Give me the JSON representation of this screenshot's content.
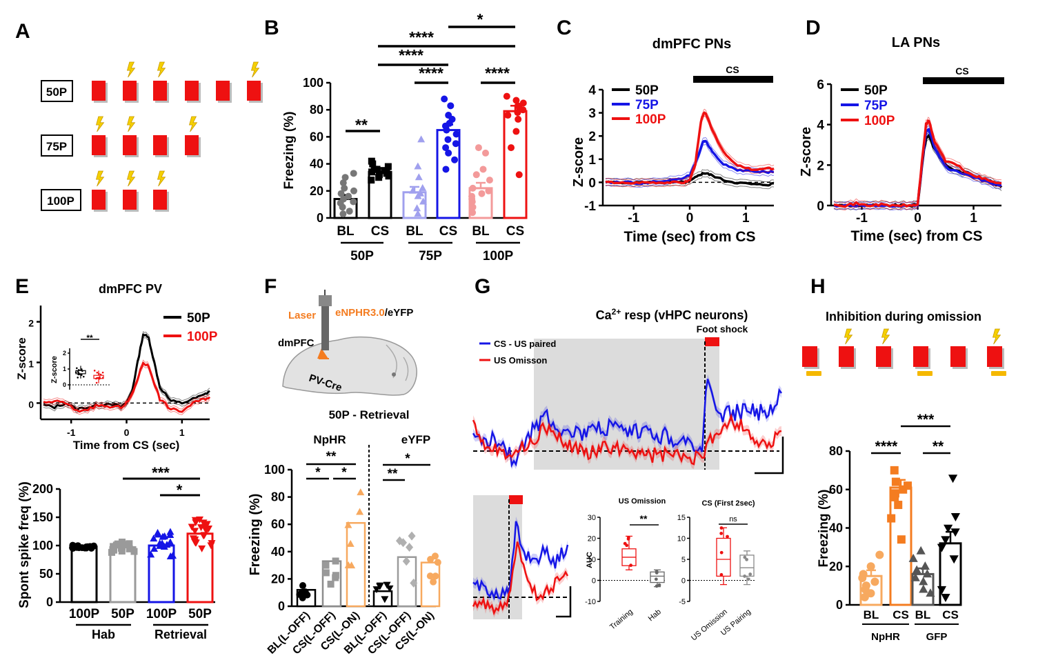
{
  "colors": {
    "p50": "#000000",
    "p75": "#1515e6",
    "p100": "#ee1111",
    "light50": "#7a7a7a",
    "light75": "#a0a0ee",
    "light100": "#f39a9a",
    "gray": "#9a9a9a",
    "orange": "#f47c20",
    "lightOrange": "#f7a95f",
    "shock": "#f5d000",
    "optoBar": "#f5b800",
    "block": "#ee1111"
  },
  "panels": {
    "A": "A",
    "B": "B",
    "C": "C",
    "D": "D",
    "E": "E",
    "F": "F",
    "G": "G",
    "H": "H"
  },
  "A": {
    "rows": [
      {
        "label": "50P",
        "shocks": [
          1,
          2,
          5
        ]
      },
      {
        "label": "75P",
        "shocks": [
          0,
          1,
          3
        ]
      },
      {
        "label": "100P",
        "shocks": [
          0,
          1,
          2
        ]
      }
    ],
    "icon": "lightning-icon"
  },
  "B": {
    "ylabel": "Freezing (%)",
    "yticks": [
      "0",
      "20",
      "40",
      "60",
      "80",
      "100"
    ],
    "tick_labels": [
      "BL",
      "CS",
      "BL",
      "CS",
      "BL",
      "CS"
    ],
    "groups": [
      "50P",
      "75P",
      "100P"
    ],
    "sig": {
      "s1": "**",
      "s2": "****",
      "s3": "****",
      "s4": "****",
      "s5": "****",
      "s6": "*"
    }
  },
  "C": {
    "title": "dmPFC PNs",
    "xlabel": "Time (sec) from CS",
    "ylabel": "Z-score",
    "cs": "CS",
    "yticks": [
      "-1",
      "0",
      "1",
      "2",
      "3",
      "4"
    ],
    "xticks": [
      "-1",
      "0",
      "1"
    ],
    "legend": [
      "50P",
      "75P",
      "100P"
    ]
  },
  "D": {
    "title": "LA PNs",
    "xlabel": "Time (sec) from CS",
    "ylabel": "Z-score",
    "cs": "CS",
    "yticks": [
      "0",
      "2",
      "4",
      "6"
    ],
    "xticks": [
      "-1",
      "0",
      "1"
    ],
    "legend": [
      "50P",
      "75P",
      "100P"
    ]
  },
  "E": {
    "title": "dmPFC PV",
    "xlabel": "Time from CS (sec)",
    "ylabel": "Z-score",
    "yticks": [
      "0",
      "1",
      "2"
    ],
    "xticks": [
      "-1",
      "0",
      "1"
    ],
    "legend": [
      "50P",
      "100P"
    ],
    "inset": {
      "ylabel": "Z-score",
      "yticks": [
        "0",
        "1",
        "2"
      ],
      "sig": "**"
    },
    "bar": {
      "ylabel": "Spont spike freq (%)",
      "yticks": [
        "0",
        "50",
        "100",
        "150",
        "200"
      ],
      "tick_labels": [
        "100P",
        "50P",
        "100P",
        "50P"
      ],
      "groups": [
        "Hab",
        "Retrieval"
      ],
      "sig1": "***",
      "sig2": "*"
    }
  },
  "F": {
    "laser": "Laser",
    "virus_a": "eNPHR3.0",
    "virus_b": "/eYFP",
    "region": "dmPFC",
    "mouse": "PV-Cre",
    "subtitle": "50P - Retrieval",
    "group1": "NpHR",
    "group2": "eYFP",
    "ylabel": "Freezing (%)",
    "yticks": [
      "0",
      "20",
      "40",
      "60",
      "80",
      "100"
    ],
    "tick_labels": [
      "BL(L-OFF)",
      "CS(L-OFF)",
      "CS(L-ON)",
      "BL(L-OFF)",
      "CS(L-OFF)",
      "CS(L-ON)"
    ],
    "sig": {
      "a": "**",
      "b": "*",
      "c": "*",
      "d": "*",
      "e": "**"
    }
  },
  "G": {
    "title_pre": "Ca",
    "title_sup": "2+",
    "title_post": " resp (vHPC neurons)",
    "foot_shock": "Foot shock",
    "legend": [
      "CS - US paired",
      "US Omisson"
    ],
    "box1": {
      "title": "US Omission",
      "ylabel": "AUC",
      "yticks": [
        "-10",
        "0",
        "10",
        "20",
        "30"
      ],
      "xlabels": [
        "Training",
        "Hab"
      ],
      "sig": "**"
    },
    "box2": {
      "title": "CS (First 2sec)",
      "yticks": [
        "-5",
        "0",
        "5",
        "10",
        "15"
      ],
      "xlabels": [
        "US Omission",
        "US Pairing"
      ],
      "sig": "ns"
    }
  },
  "H": {
    "title": "Inhibition  during omission",
    "ylabel": "Freezing (%)",
    "yticks": [
      "0",
      "20",
      "40",
      "60",
      "80"
    ],
    "tick_labels": [
      "BL",
      "CS",
      "BL",
      "CS"
    ],
    "groups": [
      "NpHR",
      "GFP"
    ],
    "sig1": "****",
    "sig2": "**",
    "sig3": "***"
  },
  "chart_data": [
    {
      "panel": "B",
      "type": "bar",
      "ylabel": "Freezing (%)",
      "ylim": [
        0,
        100
      ],
      "categories": [
        "50P BL",
        "50P CS",
        "75P BL",
        "75P CS",
        "100P BL",
        "100P CS"
      ],
      "values": [
        14,
        34,
        19,
        65,
        22,
        79
      ],
      "errors": [
        3,
        3,
        4,
        4,
        4,
        4
      ],
      "points": [
        [
          8,
          11,
          12,
          14,
          16,
          18,
          20,
          22,
          26,
          30,
          33,
          5,
          3
        ],
        [
          28,
          30,
          32,
          34,
          35,
          36,
          38,
          40,
          42,
          36,
          33,
          31
        ],
        [
          3,
          7,
          12,
          16,
          18,
          20,
          22,
          30,
          38,
          58
        ],
        [
          36,
          43,
          48,
          52,
          55,
          58,
          62,
          65,
          68,
          70,
          73,
          76,
          83,
          88
        ],
        [
          4,
          8,
          12,
          14,
          16,
          18,
          20,
          22,
          28,
          32,
          36,
          48,
          52
        ],
        [
          32,
          52,
          64,
          73,
          76,
          78,
          80,
          82,
          83,
          85,
          87,
          90
        ]
      ]
    },
    {
      "panel": "C",
      "type": "line",
      "title": "dmPFC PNs",
      "xlabel": "Time (sec) from CS",
      "ylabel": "Z-score",
      "xlim": [
        -1.5,
        1.5
      ],
      "ylim": [
        -1,
        4
      ],
      "x": [
        -1.5,
        -1.3,
        -1.1,
        -0.9,
        -0.7,
        -0.5,
        -0.3,
        -0.1,
        0.0,
        0.1,
        0.2,
        0.25,
        0.3,
        0.4,
        0.6,
        0.8,
        1.0,
        1.2,
        1.4,
        1.5
      ],
      "series": [
        {
          "name": "50P",
          "values": [
            0,
            0,
            0,
            0,
            0,
            0,
            0,
            0,
            0.05,
            0.2,
            0.35,
            0.4,
            0.38,
            0.3,
            0.1,
            0,
            -0.05,
            -0.1,
            -0.1,
            -0.05
          ]
        },
        {
          "name": "75P",
          "values": [
            0,
            0,
            0,
            -0.05,
            0,
            0.05,
            0.1,
            0.2,
            0.3,
            0.8,
            1.5,
            1.8,
            1.75,
            1.3,
            0.8,
            0.55,
            0.5,
            0.45,
            0.45,
            0.45
          ]
        },
        {
          "name": "100P",
          "values": [
            0,
            0,
            -0.05,
            0,
            0,
            0,
            0,
            0,
            0.1,
            0.8,
            2.6,
            3.0,
            2.9,
            2.3,
            1.3,
            0.8,
            0.6,
            0.55,
            0.6,
            0.6
          ]
        }
      ]
    },
    {
      "panel": "D",
      "type": "line",
      "title": "LA PNs",
      "xlabel": "Time (sec) from CS",
      "ylabel": "Z-score",
      "xlim": [
        -1.5,
        1.5
      ],
      "ylim": [
        0,
        6
      ],
      "x": [
        -1.5,
        -1.3,
        -1.1,
        -0.9,
        -0.7,
        -0.5,
        -0.3,
        -0.1,
        0.0,
        0.1,
        0.15,
        0.2,
        0.3,
        0.5,
        0.7,
        0.9,
        1.1,
        1.3,
        1.5
      ],
      "series": [
        {
          "name": "50P",
          "values": [
            0,
            0,
            0,
            0,
            0,
            0,
            0,
            0,
            0.05,
            2.5,
            3.3,
            3.5,
            2.8,
            2.0,
            1.7,
            1.6,
            1.4,
            1.2,
            0.9
          ]
        },
        {
          "name": "75P",
          "values": [
            0,
            0,
            0,
            0,
            0,
            0,
            0,
            0,
            0.05,
            2.6,
            3.6,
            3.8,
            2.9,
            1.9,
            1.7,
            1.5,
            1.3,
            1.1,
            1.0
          ]
        },
        {
          "name": "100P",
          "values": [
            0.1,
            0,
            0.1,
            0,
            0.05,
            0,
            0,
            0,
            0.05,
            2.8,
            4.0,
            4.2,
            3.2,
            2.2,
            2.0,
            1.6,
            1.4,
            1.2,
            1.1
          ]
        }
      ]
    },
    {
      "panel": "E",
      "type": "line",
      "title": "dmPFC PV",
      "xlabel": "Time from CS (sec)",
      "ylabel": "Z-score",
      "xlim": [
        -1.5,
        1.5
      ],
      "ylim": [
        -0.4,
        2.4
      ],
      "x": [
        -1.5,
        -1.3,
        -1.1,
        -0.9,
        -0.7,
        -0.5,
        -0.3,
        -0.1,
        0.0,
        0.1,
        0.2,
        0.3,
        0.4,
        0.5,
        0.6,
        0.8,
        1.0,
        1.2,
        1.4,
        1.5
      ],
      "series": [
        {
          "name": "50P",
          "values": [
            -0.05,
            -0.1,
            0,
            -0.15,
            -0.1,
            -0.05,
            0,
            -0.1,
            0,
            0.3,
            1.0,
            1.7,
            1.6,
            1.0,
            0.4,
            0.05,
            0,
            0.1,
            0.2,
            0.3
          ]
        },
        {
          "name": "100P",
          "values": [
            0,
            0.05,
            0,
            -0.2,
            -0.15,
            -0.05,
            -0.1,
            -0.1,
            0,
            0.2,
            0.6,
            1.0,
            0.9,
            0.5,
            0.1,
            -0.15,
            -0.2,
            0,
            0.1,
            0.15
          ]
        }
      ]
    },
    {
      "panel": "E",
      "type": "bar",
      "ylabel": "Spont spike freq (%)",
      "ylim": [
        0,
        200
      ],
      "categories": [
        "Hab 100P",
        "Hab 50P",
        "Retrieval 100P",
        "Retrieval 50P"
      ],
      "values": [
        98,
        97,
        100,
        121
      ],
      "errors": [
        2,
        3,
        5,
        7
      ]
    },
    {
      "panel": "F",
      "type": "bar",
      "ylabel": "Freezing (%)",
      "ylim": [
        0,
        100
      ],
      "categories": [
        "BL(L-OFF)",
        "CS(L-OFF)",
        "CS(L-ON)",
        "BL(L-OFF)",
        "CS(L-OFF)",
        "CS(L-ON)"
      ],
      "values": [
        12,
        33,
        61,
        11,
        36,
        32
      ],
      "errors": [
        4,
        7,
        6,
        2,
        4,
        5
      ]
    },
    {
      "panel": "G",
      "type": "line",
      "legend": [
        "CS - US paired",
        "US Omisson"
      ]
    },
    {
      "panel": "G",
      "type": "box",
      "title": "US Omission",
      "ylabel": "AUC",
      "ylim": [
        -10,
        30
      ],
      "categories": [
        "Training",
        "Hab"
      ],
      "median": [
        11,
        2
      ],
      "q1": [
        7,
        -1
      ],
      "q3": [
        15,
        4
      ],
      "min": [
        5,
        -3
      ],
      "max": [
        21,
        5
      ]
    },
    {
      "panel": "G",
      "type": "box",
      "title": "CS (First 2sec)",
      "ylim": [
        -5,
        15
      ],
      "categories": [
        "US Omission",
        "US Pairing"
      ],
      "median": [
        5,
        3
      ],
      "q1": [
        1,
        1
      ],
      "q3": [
        10,
        6
      ],
      "min": [
        -1,
        -1
      ],
      "max": [
        12.5,
        7
      ]
    },
    {
      "panel": "H",
      "type": "bar",
      "ylabel": "Freezing (%)",
      "ylim": [
        0,
        80
      ],
      "categories": [
        "NpHR BL",
        "NpHR CS",
        "GFP BL",
        "GFP CS"
      ],
      "values": [
        15,
        61,
        16,
        32
      ],
      "errors": [
        3,
        4,
        3,
        6
      ]
    }
  ]
}
